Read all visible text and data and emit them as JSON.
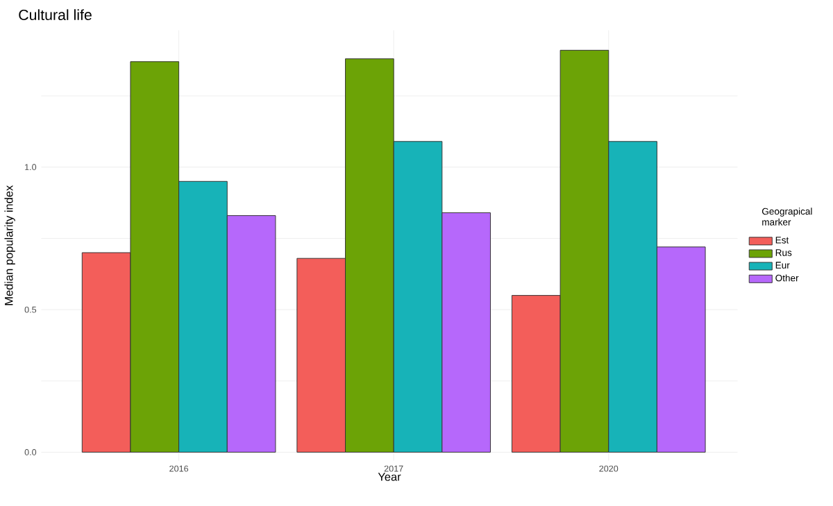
{
  "chart_data": {
    "type": "bar",
    "title": "Cultural life",
    "xlabel": "Year",
    "ylabel": "Median popularity index",
    "legend_title": "Geograpical marker",
    "categories": [
      "2016",
      "2017",
      "2020"
    ],
    "series": [
      {
        "name": "Est",
        "color": "#f35e5a",
        "values": [
          0.7,
          0.68,
          0.55
        ]
      },
      {
        "name": "Rus",
        "color": "#6ca306",
        "values": [
          1.37,
          1.38,
          1.41
        ]
      },
      {
        "name": "Eur",
        "color": "#17b3b8",
        "values": [
          0.95,
          1.09,
          1.09
        ]
      },
      {
        "name": "Other",
        "color": "#b668fb",
        "values": [
          0.83,
          0.84,
          0.72
        ]
      }
    ],
    "ylim": [
      -0.03,
      1.48
    ],
    "yticks": [
      {
        "value": 0.0,
        "label": "0.0"
      },
      {
        "value": 0.25,
        "label": null
      },
      {
        "value": 0.5,
        "label": "0.5"
      },
      {
        "value": 0.75,
        "label": null
      },
      {
        "value": 1.0,
        "label": "1.0"
      },
      {
        "value": 1.25,
        "label": null
      }
    ],
    "grid": true,
    "legend": "right"
  }
}
